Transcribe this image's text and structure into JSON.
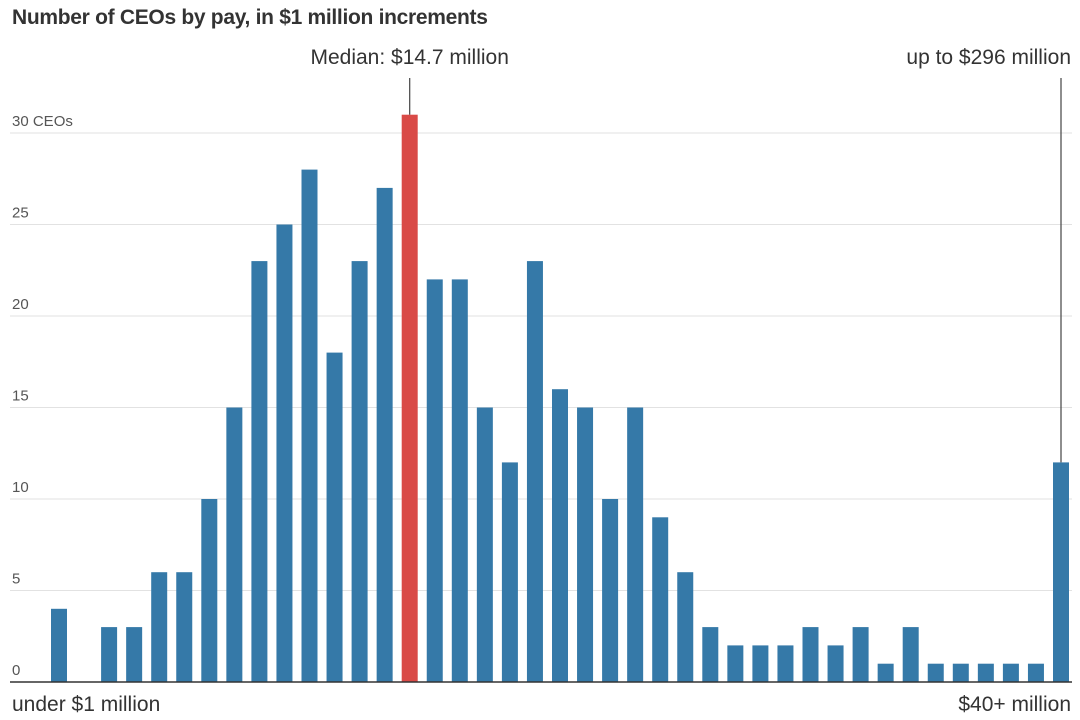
{
  "chart_data": {
    "type": "bar",
    "title": "Number of CEOs by pay, in $1 million increments",
    "xlabel": "",
    "ylabel": "CEOs",
    "ylim": [
      0,
      30
    ],
    "yticks": [
      {
        "value": 0,
        "label": "0"
      },
      {
        "value": 5,
        "label": "5"
      },
      {
        "value": 10,
        "label": "10"
      },
      {
        "value": 15,
        "label": "15"
      },
      {
        "value": 20,
        "label": "20"
      },
      {
        "value": 25,
        "label": "25"
      },
      {
        "value": 30,
        "label": "30 CEOs"
      }
    ],
    "x_start_label": "under $1 million",
    "x_end_label": "$40+ million",
    "values": [
      4,
      0,
      3,
      3,
      6,
      6,
      10,
      15,
      23,
      25,
      28,
      18,
      23,
      27,
      31,
      22,
      22,
      15,
      12,
      23,
      16,
      15,
      10,
      15,
      9,
      6,
      3,
      2,
      2,
      2,
      3,
      2,
      3,
      1,
      3,
      1,
      1,
      1,
      1,
      1,
      12
    ],
    "highlight_index": 14,
    "annotations": {
      "median": {
        "label": "Median: $14.7 million",
        "bar_index": 14
      },
      "max": {
        "label": "up to $296 million",
        "bar_index": 40
      }
    },
    "colors": {
      "bar": "#3579a8",
      "highlight": "#d94a47",
      "grid": "#e2e2e2",
      "axis": "#333333",
      "leader": "#444444"
    }
  }
}
